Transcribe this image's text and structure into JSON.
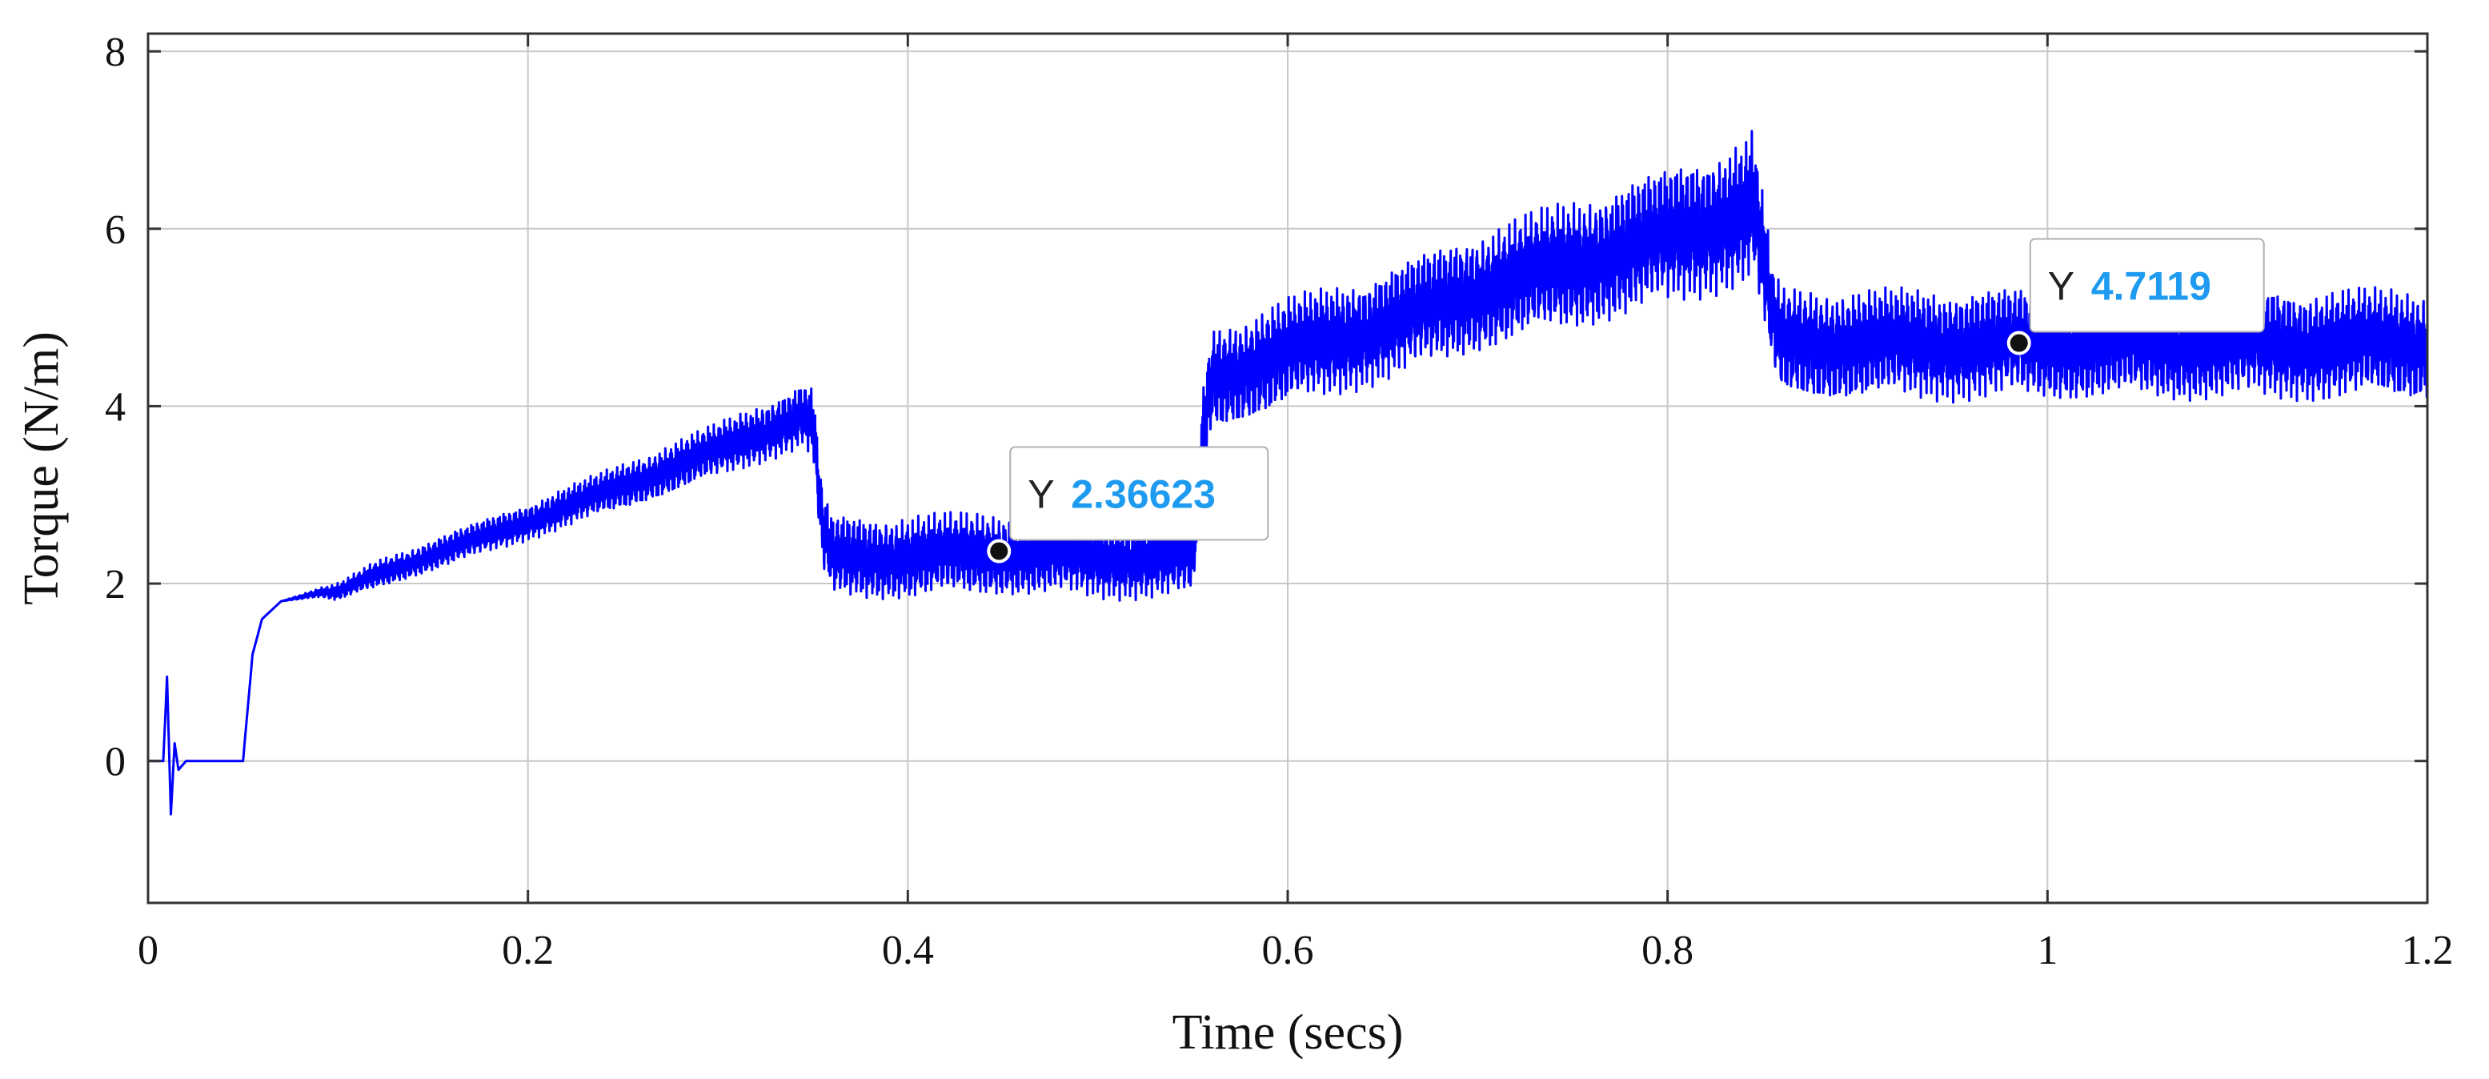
{
  "chart_data": {
    "type": "line",
    "title": "",
    "xlabel": "Time (secs)",
    "ylabel": "Torque (N/m)",
    "xlim": [
      0,
      1.2
    ],
    "ylim": [
      -1.6,
      8.2
    ],
    "xticks": [
      "0",
      "0.2",
      "0.4",
      "0.6",
      "0.8",
      "1",
      "1.2"
    ],
    "yticks": [
      "0",
      "2",
      "4",
      "6",
      "8"
    ],
    "grid": true,
    "series_color": "#0000FF",
    "series": [
      {
        "x": [
          0,
          0.008,
          0.01,
          0.012,
          0.014,
          0.016,
          0.02,
          0.05,
          0.055,
          0.06,
          0.07,
          0.09,
          0.1,
          0.11,
          0.12,
          0.2,
          0.3,
          0.345,
          0.35,
          0.355,
          0.36,
          0.4,
          0.45,
          0.5,
          0.55,
          0.553,
          0.556,
          0.56,
          0.6,
          0.65,
          0.7,
          0.75,
          0.8,
          0.84,
          0.845,
          0.85,
          0.855,
          0.86,
          0.9,
          0.95,
          1.0,
          1.1,
          1.2
        ],
        "y": [
          0,
          0,
          0.95,
          -0.6,
          0.2,
          -0.1,
          0,
          0,
          1.2,
          1.6,
          1.8,
          1.9,
          1.9,
          2.0,
          2.1,
          2.7,
          3.5,
          3.9,
          3.8,
          2.6,
          2.3,
          2.3,
          2.35,
          2.3,
          2.3,
          3.0,
          3.8,
          4.3,
          4.6,
          4.9,
          5.3,
          5.6,
          5.9,
          6.2,
          6.3,
          5.7,
          5.0,
          4.7,
          4.7,
          4.7,
          4.7,
          4.7,
          4.7
        ],
        "ripple": [
          0,
          0,
          0,
          0,
          0,
          0,
          0,
          0,
          0,
          0,
          0,
          0.05,
          0.1,
          0.12,
          0.15,
          0.2,
          0.3,
          0.35,
          0.4,
          0.45,
          0.45,
          0.45,
          0.45,
          0.45,
          0.45,
          0.45,
          0.5,
          0.55,
          0.6,
          0.6,
          0.65,
          0.7,
          0.75,
          0.8,
          0.8,
          0.7,
          0.6,
          0.6,
          0.6,
          0.6,
          0.6,
          0.6,
          0.6
        ]
      }
    ],
    "annotations": [
      {
        "x": 0.448,
        "y": 2.36623,
        "prefix": "Y",
        "value": "2.36623",
        "color": "#1E9BF0"
      },
      {
        "x": 0.985,
        "y": 4.7119,
        "prefix": "Y",
        "value": "4.7119",
        "color": "#1E9BF0"
      }
    ]
  }
}
